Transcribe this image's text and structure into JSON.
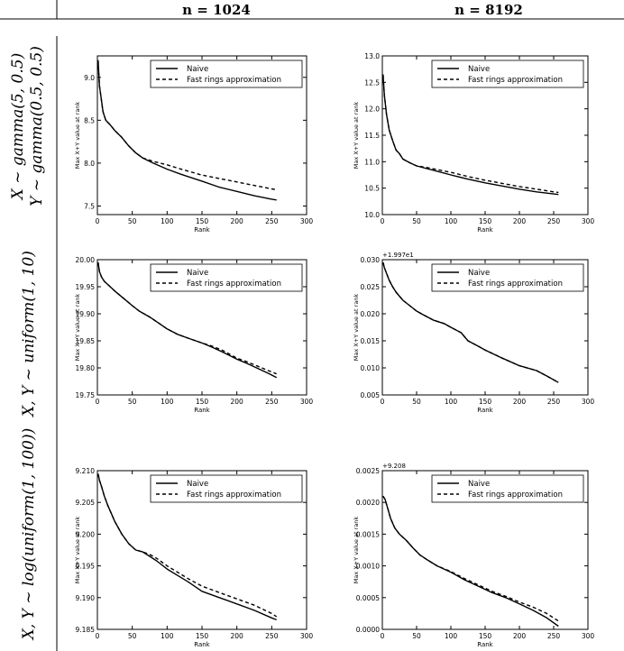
{
  "column_headers": [
    "n = 1024",
    "n = 8192"
  ],
  "row_labels": [
    [
      "X ~ gamma(5, 0.5)",
      "Y ~ gamma(0.5, 0.5)"
    ],
    [
      "X, Y ~ uniform(1, 10)"
    ],
    [
      "X, Y ~ log(uniform(1, 100))"
    ]
  ],
  "chart_data": [
    {
      "type": "line",
      "column": "n = 1024",
      "row": 1,
      "xlabel": "Rank",
      "ylabel": "Max X+Y value at rank",
      "offset_text": "",
      "xlim": [
        0,
        300
      ],
      "ylim": [
        7.4,
        9.25
      ],
      "xticks": [
        "0",
        "50",
        "100",
        "150",
        "200",
        "250",
        "300"
      ],
      "yticks": [
        "7.5",
        "8.0",
        "8.5",
        "9.0"
      ],
      "ytick_values": [
        7.5,
        8.0,
        8.5,
        9.0
      ],
      "legend": [
        "Naive",
        "Fast rings approximation"
      ],
      "legend_position": "upper right",
      "series": [
        {
          "name": "Naive",
          "style": "solid",
          "x": [
            1,
            3,
            5,
            8,
            12,
            18,
            25,
            35,
            45,
            55,
            65,
            80,
            100,
            120,
            150,
            175,
            200,
            225,
            250,
            257
          ],
          "y": [
            9.2,
            8.9,
            8.78,
            8.6,
            8.5,
            8.45,
            8.38,
            8.3,
            8.2,
            8.12,
            8.06,
            8.0,
            7.93,
            7.87,
            7.79,
            7.72,
            7.67,
            7.62,
            7.58,
            7.57
          ]
        },
        {
          "name": "Fast rings approximation",
          "style": "dashed",
          "x": [
            1,
            3,
            5,
            8,
            12,
            18,
            25,
            35,
            45,
            55,
            65,
            80,
            100,
            120,
            150,
            175,
            200,
            225,
            250,
            257
          ],
          "y": [
            9.2,
            8.9,
            8.78,
            8.6,
            8.5,
            8.45,
            8.38,
            8.3,
            8.2,
            8.12,
            8.06,
            8.02,
            7.98,
            7.93,
            7.86,
            7.82,
            7.78,
            7.74,
            7.7,
            7.69
          ]
        }
      ]
    },
    {
      "type": "line",
      "column": "n = 8192",
      "row": 1,
      "xlabel": "Rank",
      "ylabel": "Max X+Y value at rank",
      "offset_text": "",
      "xlim": [
        0,
        300
      ],
      "ylim": [
        10.0,
        13.0
      ],
      "xticks": [
        "0",
        "50",
        "100",
        "150",
        "200",
        "250",
        "300"
      ],
      "yticks": [
        "10.0",
        "10.5",
        "11.0",
        "11.5",
        "12.0",
        "12.5",
        "13.0"
      ],
      "ytick_values": [
        10.0,
        10.5,
        11.0,
        11.5,
        12.0,
        12.5,
        13.0
      ],
      "legend": [
        "Naive",
        "Fast rings approximation"
      ],
      "legend_position": "upper right",
      "series": [
        {
          "name": "Naive",
          "style": "solid",
          "x": [
            1,
            3,
            6,
            10,
            15,
            20,
            25,
            30,
            40,
            50,
            65,
            80,
            100,
            125,
            150,
            175,
            200,
            225,
            250,
            257
          ],
          "y": [
            12.65,
            12.25,
            11.9,
            11.6,
            11.4,
            11.22,
            11.15,
            11.05,
            10.98,
            10.92,
            10.87,
            10.82,
            10.75,
            10.67,
            10.6,
            10.54,
            10.48,
            10.43,
            10.39,
            10.38
          ]
        },
        {
          "name": "Fast rings approximation",
          "style": "dashed",
          "x": [
            1,
            3,
            6,
            10,
            15,
            20,
            25,
            30,
            40,
            50,
            65,
            80,
            100,
            125,
            150,
            175,
            200,
            225,
            250,
            257
          ],
          "y": [
            12.65,
            12.25,
            11.9,
            11.6,
            11.4,
            11.22,
            11.15,
            11.05,
            10.98,
            10.92,
            10.89,
            10.85,
            10.8,
            10.72,
            10.65,
            10.59,
            10.53,
            10.48,
            10.43,
            10.42
          ]
        }
      ]
    },
    {
      "type": "line",
      "column": "n = 1024",
      "row": 2,
      "xlabel": "Rank",
      "ylabel": "Max X+Y value at rank",
      "offset_text": "",
      "xlim": [
        0,
        300
      ],
      "ylim": [
        19.75,
        20.0
      ],
      "xticks": [
        "0",
        "50",
        "100",
        "150",
        "200",
        "250",
        "300"
      ],
      "yticks": [
        "19.75",
        "19.80",
        "19.85",
        "19.90",
        "19.95",
        "20.00"
      ],
      "ytick_values": [
        19.75,
        19.8,
        19.85,
        19.9,
        19.95,
        20.0
      ],
      "legend": [
        "Naive",
        "Fast rings approximation"
      ],
      "legend_position": "upper right",
      "series": [
        {
          "name": "Naive",
          "style": "solid",
          "x": [
            1,
            3,
            6,
            10,
            15,
            25,
            40,
            50,
            60,
            75,
            90,
            100,
            115,
            130,
            150,
            165,
            180,
            200,
            215,
            230,
            245,
            257
          ],
          "y": [
            19.995,
            19.978,
            19.968,
            19.96,
            19.954,
            19.942,
            19.926,
            19.915,
            19.905,
            19.894,
            19.881,
            19.872,
            19.862,
            19.855,
            19.846,
            19.838,
            19.829,
            19.816,
            19.808,
            19.799,
            19.79,
            19.782
          ]
        },
        {
          "name": "Fast rings approximation",
          "style": "dashed",
          "x": [
            1,
            3,
            6,
            10,
            15,
            25,
            40,
            50,
            60,
            75,
            90,
            100,
            115,
            130,
            150,
            165,
            180,
            200,
            215,
            230,
            245,
            257
          ],
          "y": [
            19.995,
            19.978,
            19.968,
            19.96,
            19.954,
            19.942,
            19.926,
            19.915,
            19.905,
            19.894,
            19.881,
            19.872,
            19.862,
            19.855,
            19.846,
            19.84,
            19.832,
            19.818,
            19.811,
            19.803,
            19.795,
            19.789
          ]
        }
      ]
    },
    {
      "type": "line",
      "column": "n = 8192",
      "row": 2,
      "xlabel": "Rank",
      "ylabel": "Max X+Y value at rank",
      "offset_text": "+1.997e1",
      "xlim": [
        0,
        300
      ],
      "ylim": [
        0.005,
        0.03
      ],
      "xticks": [
        "0",
        "50",
        "100",
        "150",
        "200",
        "250",
        "300"
      ],
      "yticks": [
        "0.005",
        "0.010",
        "0.015",
        "0.020",
        "0.025",
        "0.030"
      ],
      "ytick_values": [
        0.005,
        0.01,
        0.015,
        0.02,
        0.025,
        0.03
      ],
      "legend": [
        "Naive",
        "Fast rings approximation"
      ],
      "legend_position": "upper right",
      "series": [
        {
          "name": "Naive",
          "style": "solid",
          "x": [
            1,
            3,
            6,
            10,
            15,
            20,
            30,
            40,
            50,
            60,
            75,
            90,
            100,
            115,
            125,
            140,
            150,
            175,
            200,
            225,
            240,
            257
          ],
          "y": [
            0.0295,
            0.0285,
            0.0275,
            0.0262,
            0.025,
            0.024,
            0.0225,
            0.0215,
            0.0205,
            0.0198,
            0.0188,
            0.0182,
            0.0175,
            0.0165,
            0.015,
            0.014,
            0.0133,
            0.0118,
            0.0104,
            0.0095,
            0.0085,
            0.0073
          ]
        },
        {
          "name": "Fast rings approximation",
          "style": "dashed",
          "x": [
            1,
            3,
            6,
            10,
            15,
            20,
            30,
            40,
            50,
            60,
            75,
            90,
            100,
            115,
            125,
            140,
            150,
            175,
            200,
            225,
            240,
            257
          ],
          "y": [
            0.0295,
            0.0285,
            0.0275,
            0.0262,
            0.025,
            0.024,
            0.0225,
            0.0215,
            0.0205,
            0.0198,
            0.0188,
            0.0182,
            0.0175,
            0.0165,
            0.015,
            0.014,
            0.0133,
            0.0118,
            0.0104,
            0.0095,
            0.0085,
            0.0073
          ]
        }
      ]
    },
    {
      "type": "line",
      "column": "n = 1024",
      "row": 3,
      "xlabel": "Rank",
      "ylabel": "Max X+Y value at rank",
      "offset_text": "",
      "xlim": [
        0,
        300
      ],
      "ylim": [
        9.185,
        9.21
      ],
      "xticks": [
        "0",
        "50",
        "100",
        "150",
        "200",
        "250",
        "300"
      ],
      "yticks": [
        "9.185",
        "9.190",
        "9.195",
        "9.200",
        "9.205",
        "9.210"
      ],
      "ytick_values": [
        9.185,
        9.19,
        9.195,
        9.2,
        9.205,
        9.21
      ],
      "legend": [
        "Naive",
        "Fast rings approximation"
      ],
      "legend_position": "upper right",
      "series": [
        {
          "name": "Naive",
          "style": "solid",
          "x": [
            1,
            3,
            6,
            10,
            15,
            25,
            35,
            45,
            55,
            65,
            75,
            85,
            100,
            115,
            130,
            150,
            175,
            200,
            225,
            250,
            257
          ],
          "y": [
            9.2095,
            9.2085,
            9.2075,
            9.206,
            9.2045,
            9.202,
            9.2,
            9.1985,
            9.1975,
            9.1972,
            9.1965,
            9.1958,
            9.1945,
            9.1935,
            9.1925,
            9.191,
            9.19,
            9.189,
            9.188,
            9.1868,
            9.1865
          ]
        },
        {
          "name": "Fast rings approximation",
          "style": "dashed",
          "x": [
            1,
            3,
            6,
            10,
            15,
            25,
            35,
            45,
            55,
            65,
            75,
            85,
            100,
            115,
            130,
            150,
            175,
            200,
            225,
            250,
            257
          ],
          "y": [
            9.2095,
            9.2085,
            9.2075,
            9.206,
            9.2045,
            9.202,
            9.2,
            9.1985,
            9.1975,
            9.1972,
            9.1968,
            9.1962,
            9.195,
            9.194,
            9.193,
            9.1918,
            9.1908,
            9.1898,
            9.1888,
            9.1875,
            9.187
          ]
        }
      ]
    },
    {
      "type": "line",
      "column": "n = 8192",
      "row": 3,
      "xlabel": "Rank",
      "ylabel": "Max X+Y value at rank",
      "offset_text": "+9.208",
      "xlim": [
        0,
        300
      ],
      "ylim": [
        0.0,
        0.0025
      ],
      "xticks": [
        "0",
        "50",
        "100",
        "150",
        "200",
        "250",
        "300"
      ],
      "yticks": [
        "0.0000",
        "0.0005",
        "0.0010",
        "0.0015",
        "0.0020",
        "0.0025"
      ],
      "ytick_values": [
        0,
        0.0005,
        0.001,
        0.0015,
        0.002,
        0.0025
      ],
      "legend": [
        "Naive",
        "Fast rings approximation"
      ],
      "legend_position": "upper right",
      "series": [
        {
          "name": "Naive",
          "style": "solid",
          "x": [
            1,
            4,
            8,
            12,
            18,
            25,
            35,
            45,
            55,
            65,
            80,
            100,
            120,
            140,
            160,
            180,
            200,
            220,
            240,
            257
          ],
          "y": [
            0.0021,
            0.00205,
            0.0019,
            0.00175,
            0.0016,
            0.0015,
            0.0014,
            0.00128,
            0.00117,
            0.0011,
            0.001,
            0.0009,
            0.00078,
            0.00068,
            0.00058,
            0.0005,
            0.0004,
            0.0003,
            0.00018,
            5e-05
          ]
        },
        {
          "name": "Fast rings approximation",
          "style": "dashed",
          "x": [
            1,
            4,
            8,
            12,
            18,
            25,
            35,
            45,
            55,
            65,
            80,
            100,
            120,
            140,
            160,
            180,
            200,
            220,
            240,
            257
          ],
          "y": [
            0.0021,
            0.00205,
            0.0019,
            0.00175,
            0.0016,
            0.0015,
            0.0014,
            0.00128,
            0.00117,
            0.0011,
            0.001,
            0.00091,
            0.0008,
            0.0007,
            0.0006,
            0.00052,
            0.00043,
            0.00035,
            0.00025,
            0.00013
          ]
        }
      ]
    }
  ]
}
